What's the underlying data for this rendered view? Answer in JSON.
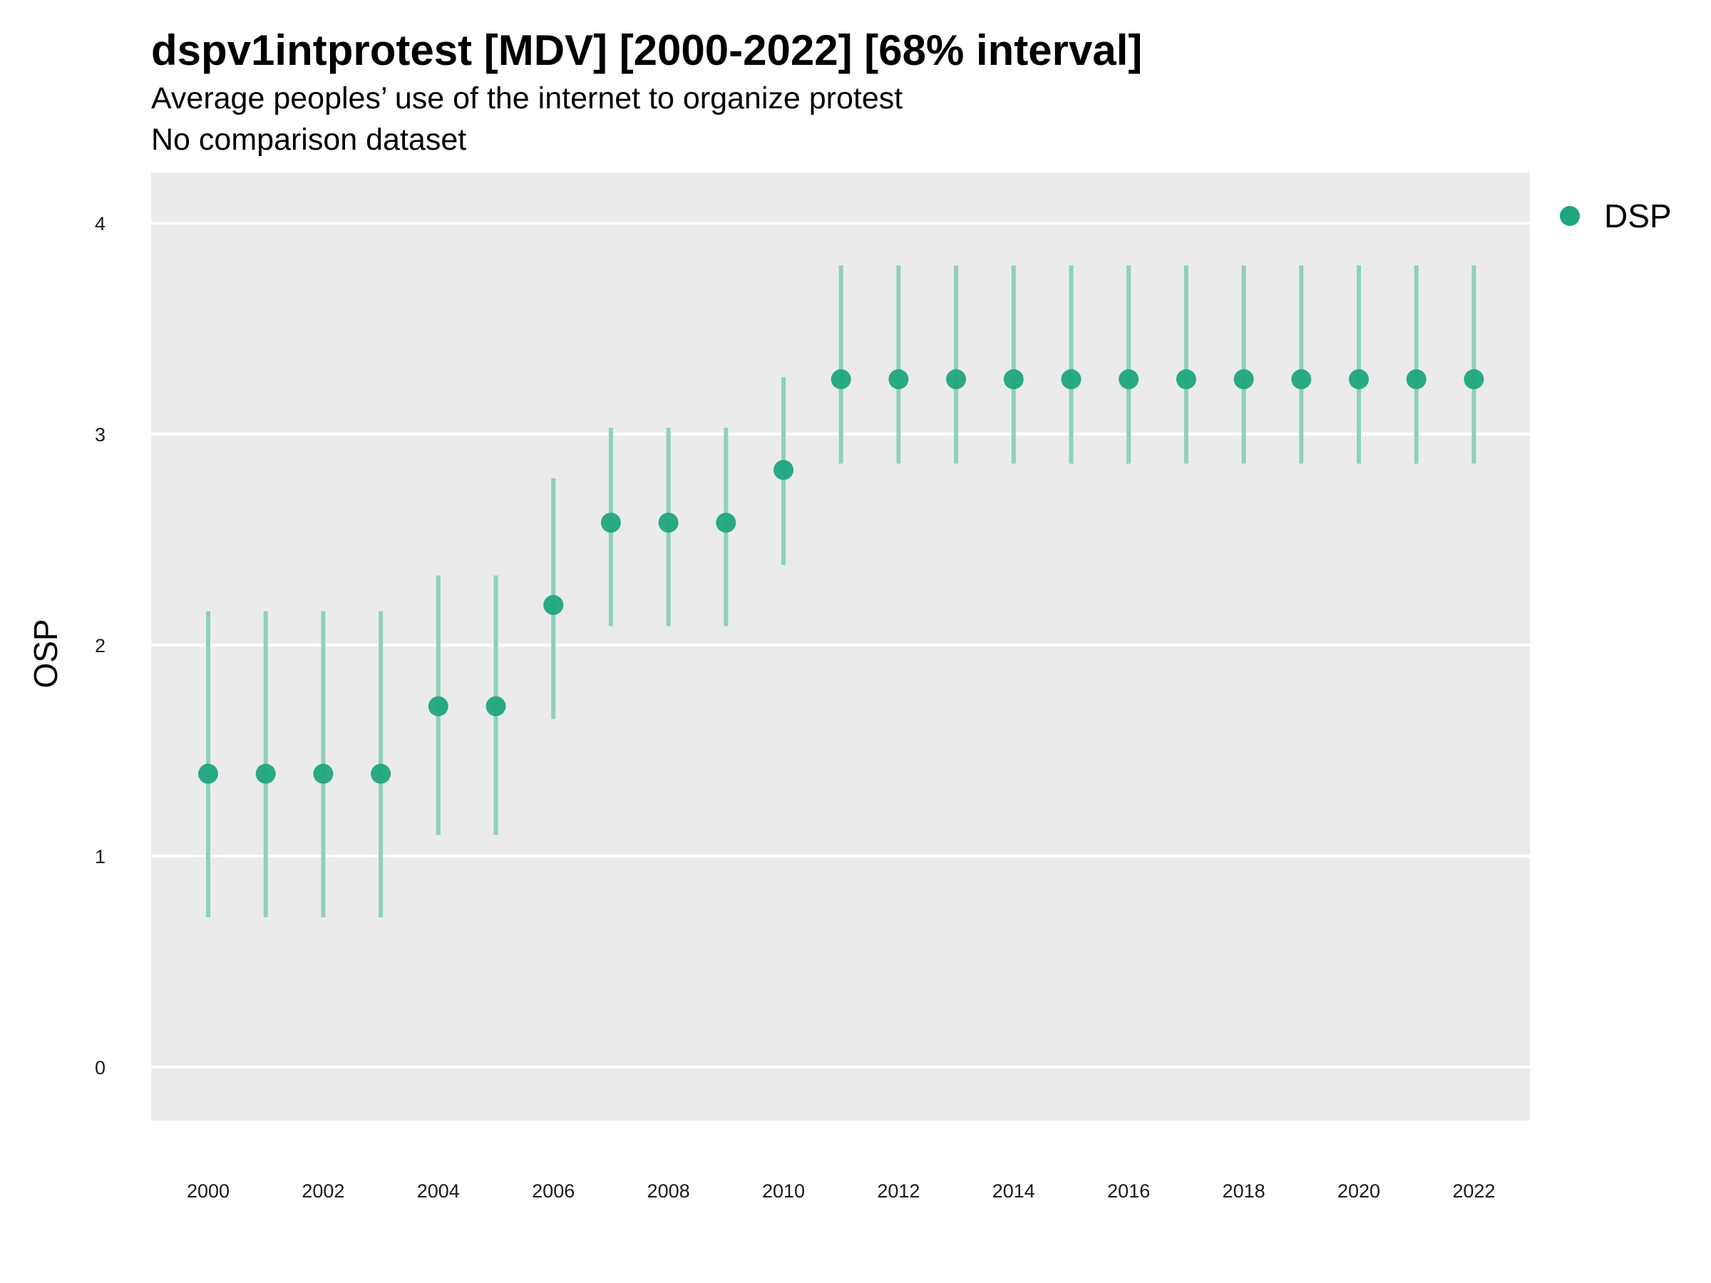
{
  "chart_data": {
    "type": "scatter",
    "title": "dspv1intprotest [MDV] [2000-2022] [68% interval]",
    "subtitle": "Average peoples’ use of the internet to organize protest",
    "note": "No comparison dataset",
    "xlabel": "",
    "ylabel": "OSP",
    "xlim": [
      1999,
      2023
    ],
    "ylim": [
      -0.25,
      4.25
    ],
    "x_ticks": [
      2000,
      2002,
      2004,
      2006,
      2008,
      2010,
      2012,
      2014,
      2016,
      2018,
      2020,
      2022
    ],
    "y_ticks": [
      0,
      1,
      2,
      3,
      4
    ],
    "grid": "horizontal",
    "legend_position": "right",
    "colors": {
      "point": "#1fa67e",
      "interval": "#8fd0bb",
      "panel": "#ebebeb",
      "grid": "#ffffff"
    },
    "series": [
      {
        "name": "DSP",
        "points": [
          {
            "x": 2000,
            "y": 1.39,
            "lo": 0.71,
            "hi": 2.16
          },
          {
            "x": 2001,
            "y": 1.39,
            "lo": 0.71,
            "hi": 2.16
          },
          {
            "x": 2002,
            "y": 1.39,
            "lo": 0.71,
            "hi": 2.16
          },
          {
            "x": 2003,
            "y": 1.39,
            "lo": 0.71,
            "hi": 2.16
          },
          {
            "x": 2004,
            "y": 1.71,
            "lo": 1.1,
            "hi": 2.33
          },
          {
            "x": 2005,
            "y": 1.71,
            "lo": 1.1,
            "hi": 2.33
          },
          {
            "x": 2006,
            "y": 2.19,
            "lo": 1.65,
            "hi": 2.79
          },
          {
            "x": 2007,
            "y": 2.58,
            "lo": 2.09,
            "hi": 3.03
          },
          {
            "x": 2008,
            "y": 2.58,
            "lo": 2.09,
            "hi": 3.03
          },
          {
            "x": 2009,
            "y": 2.58,
            "lo": 2.09,
            "hi": 3.03
          },
          {
            "x": 2010,
            "y": 2.83,
            "lo": 2.38,
            "hi": 3.27
          },
          {
            "x": 2011,
            "y": 3.26,
            "lo": 2.86,
            "hi": 3.8
          },
          {
            "x": 2012,
            "y": 3.26,
            "lo": 2.86,
            "hi": 3.8
          },
          {
            "x": 2013,
            "y": 3.26,
            "lo": 2.86,
            "hi": 3.8
          },
          {
            "x": 2014,
            "y": 3.26,
            "lo": 2.86,
            "hi": 3.8
          },
          {
            "x": 2015,
            "y": 3.26,
            "lo": 2.86,
            "hi": 3.8
          },
          {
            "x": 2016,
            "y": 3.26,
            "lo": 2.86,
            "hi": 3.8
          },
          {
            "x": 2017,
            "y": 3.26,
            "lo": 2.86,
            "hi": 3.8
          },
          {
            "x": 2018,
            "y": 3.26,
            "lo": 2.86,
            "hi": 3.8
          },
          {
            "x": 2019,
            "y": 3.26,
            "lo": 2.86,
            "hi": 3.8
          },
          {
            "x": 2020,
            "y": 3.26,
            "lo": 2.86,
            "hi": 3.8
          },
          {
            "x": 2021,
            "y": 3.26,
            "lo": 2.86,
            "hi": 3.8
          },
          {
            "x": 2022,
            "y": 3.26,
            "lo": 2.86,
            "hi": 3.8
          }
        ]
      }
    ]
  }
}
